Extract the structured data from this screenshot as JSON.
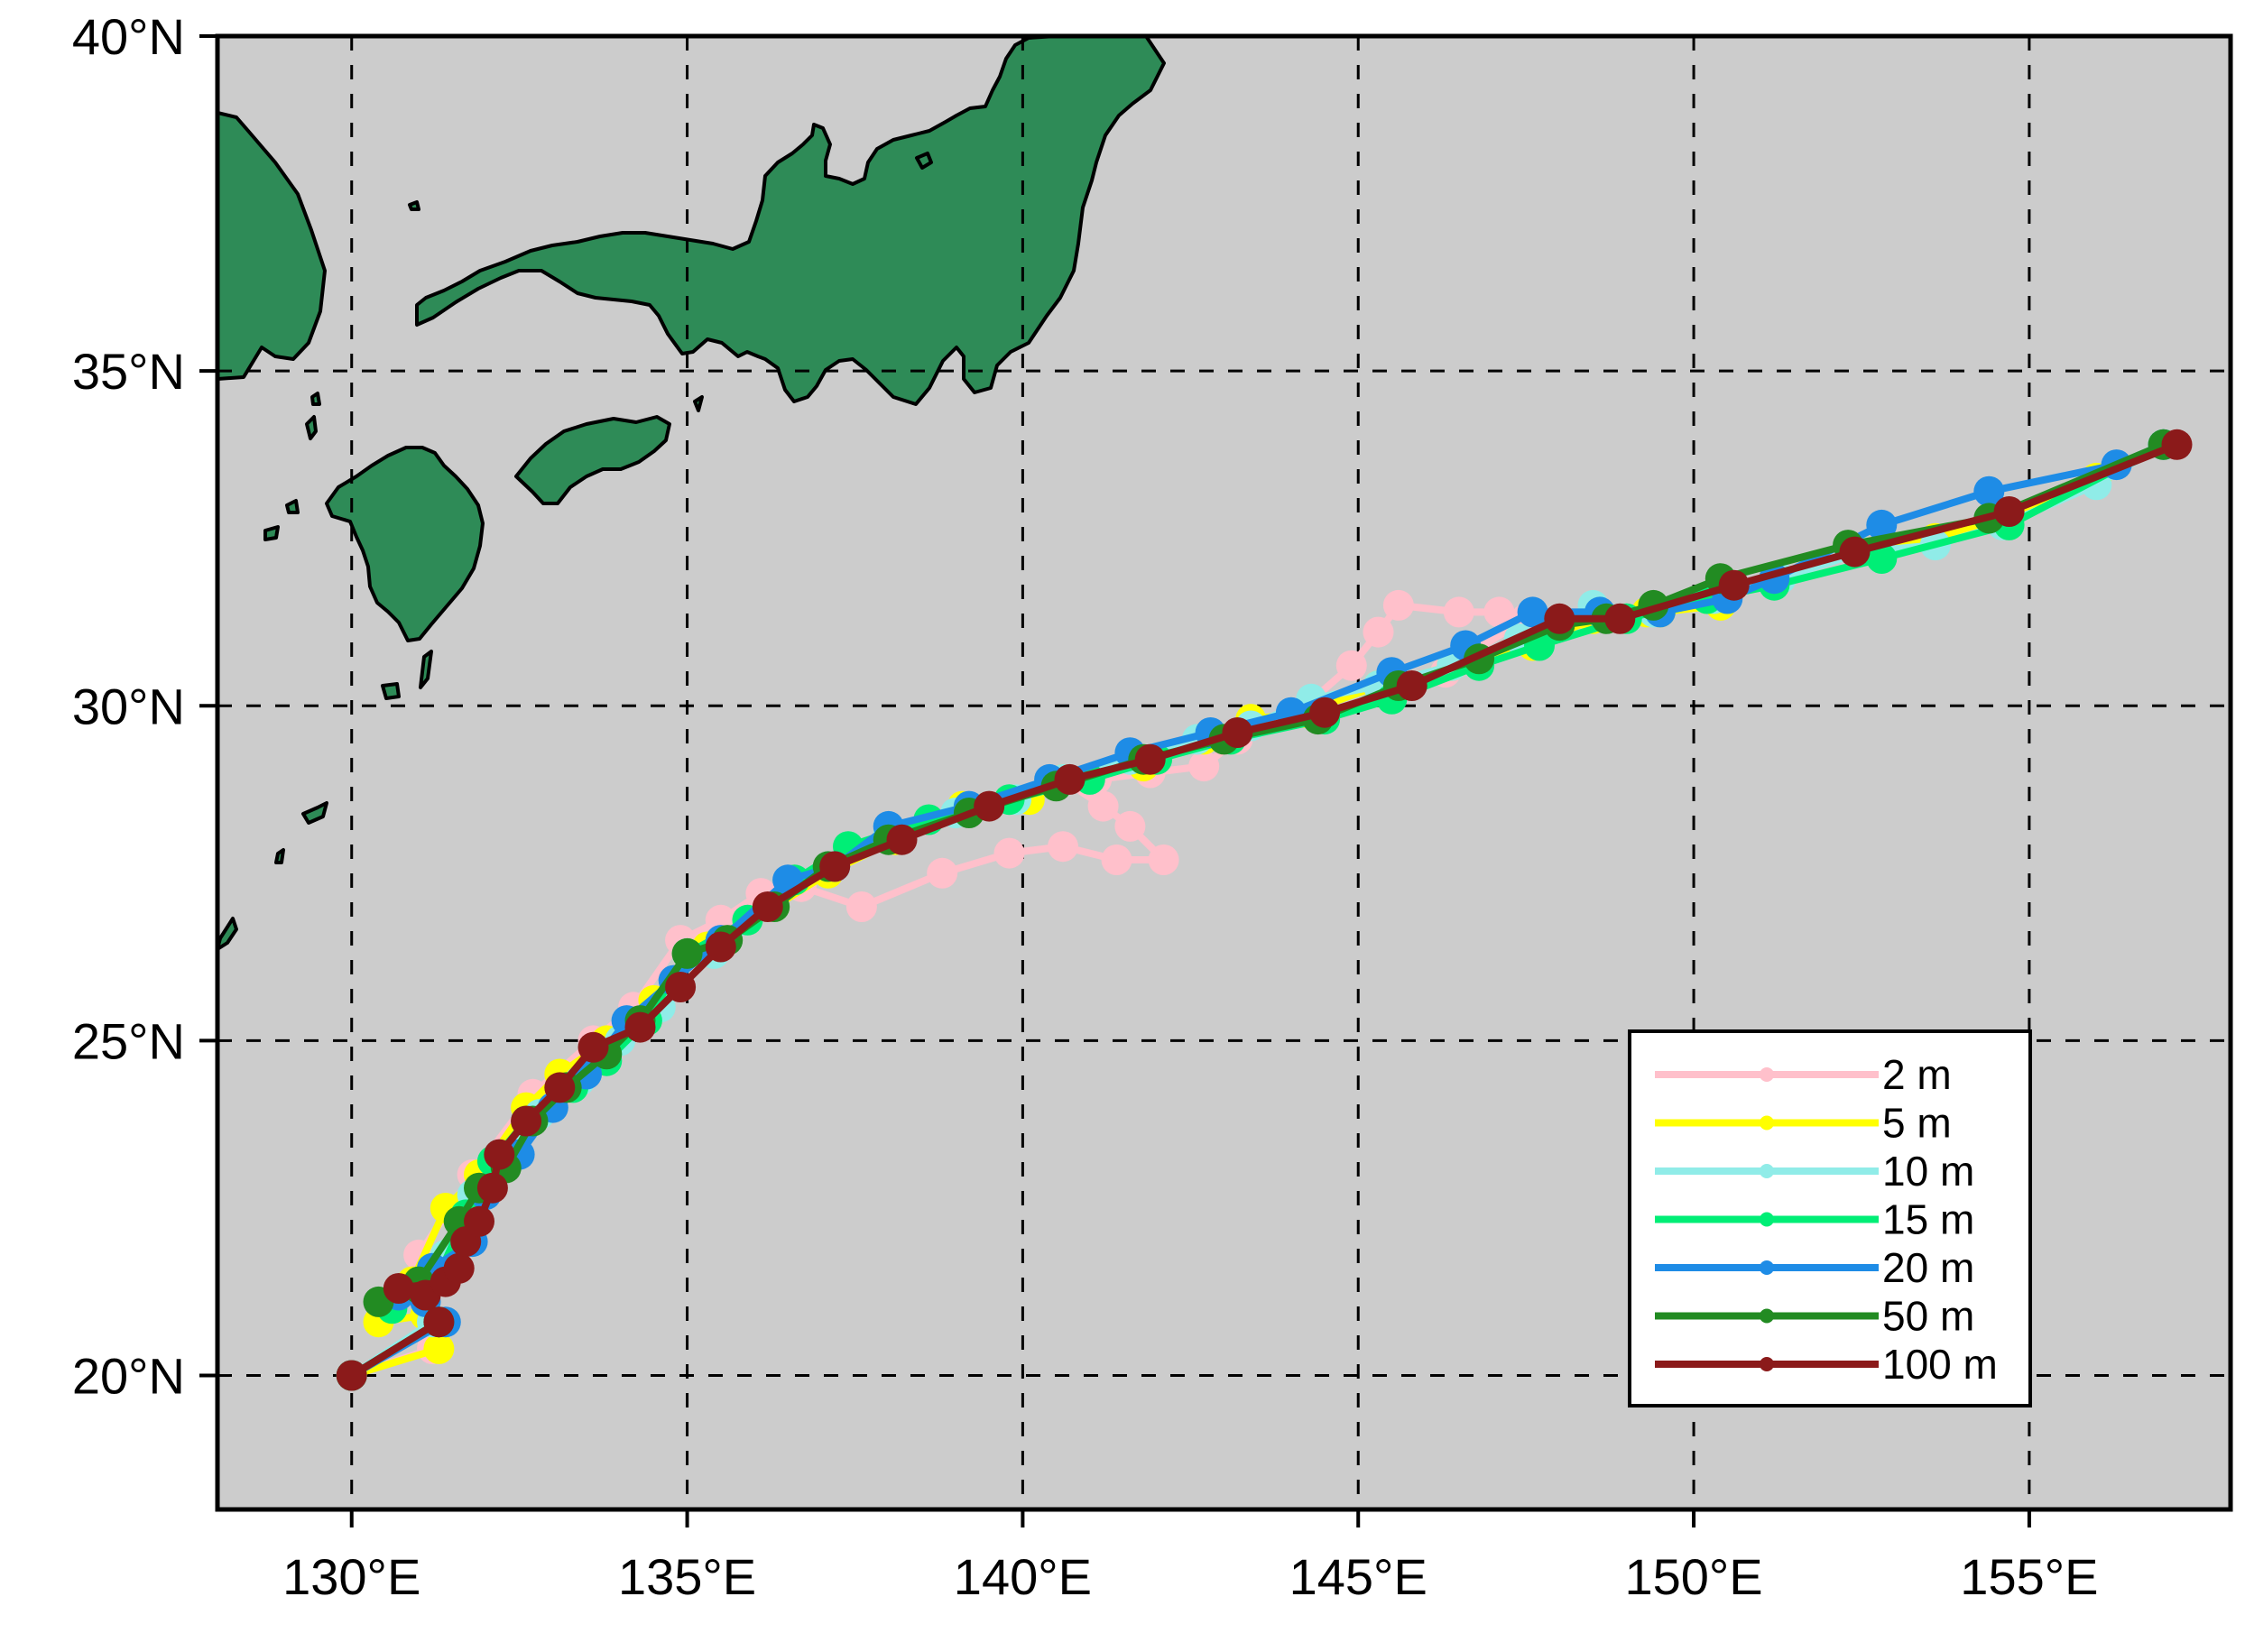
{
  "map": {
    "projection": "cylindrical-equidistant",
    "lon_range": [
      128,
      158
    ],
    "lat_range": [
      18,
      40
    ],
    "ocean_color": "#cccccc",
    "land_color": "#2e8b57",
    "grid": "dashed",
    "x_ticks": [
      {
        "value": 130,
        "label": "130°E"
      },
      {
        "value": 135,
        "label": "135°E"
      },
      {
        "value": 140,
        "label": "140°E"
      },
      {
        "value": 145,
        "label": "145°E"
      },
      {
        "value": 150,
        "label": "150°E"
      },
      {
        "value": 155,
        "label": "155°E"
      }
    ],
    "y_ticks": [
      {
        "value": 20,
        "label": "20°N"
      },
      {
        "value": 25,
        "label": "25°N"
      },
      {
        "value": 30,
        "label": "30°N"
      },
      {
        "value": 35,
        "label": "35°N"
      },
      {
        "value": 40,
        "label": "40°N"
      }
    ]
  },
  "legend": {
    "placement": "bottom-right",
    "entries": [
      "2 m",
      "5 m",
      "10 m",
      "15 m",
      "20 m",
      "50 m",
      "100 m"
    ]
  },
  "chart_data": {
    "type": "line",
    "xlabel": "",
    "ylabel": "",
    "series": [
      {
        "name": "2 m",
        "color": "#ffc0cb",
        "points": [
          [
            130.0,
            20.0
          ],
          [
            131.2,
            20.4
          ],
          [
            131.0,
            21.8
          ],
          [
            131.8,
            23.0
          ],
          [
            132.7,
            24.2
          ],
          [
            133.6,
            25.0
          ],
          [
            134.2,
            25.5
          ],
          [
            134.9,
            26.5
          ],
          [
            135.5,
            26.8
          ],
          [
            136.1,
            27.2
          ],
          [
            136.7,
            27.3
          ],
          [
            137.6,
            27.0
          ],
          [
            138.8,
            27.5
          ],
          [
            139.8,
            27.8
          ],
          [
            140.6,
            27.9
          ],
          [
            141.4,
            27.7
          ],
          [
            142.1,
            27.7
          ],
          [
            141.6,
            28.2
          ],
          [
            141.2,
            28.5
          ],
          [
            140.6,
            28.9
          ],
          [
            141.1,
            28.9
          ],
          [
            141.9,
            29.0
          ],
          [
            142.7,
            29.1
          ],
          [
            143.2,
            29.5
          ],
          [
            144.1,
            29.9
          ],
          [
            144.9,
            30.6
          ],
          [
            145.3,
            31.1
          ],
          [
            145.6,
            31.5
          ],
          [
            146.5,
            31.4
          ],
          [
            147.1,
            31.4
          ],
          [
            147.5,
            31.3
          ],
          [
            146.7,
            30.8
          ],
          [
            146.3,
            30.5
          ],
          [
            145.3,
            30.3
          ]
        ]
      },
      {
        "name": "5 m",
        "color": "#ffff00",
        "points": [
          [
            130.0,
            20.0
          ],
          [
            131.3,
            20.4
          ],
          [
            131.1,
            20.9
          ],
          [
            130.4,
            20.8
          ],
          [
            130.9,
            21.4
          ],
          [
            131.4,
            22.5
          ],
          [
            131.9,
            23.0
          ],
          [
            132.6,
            24.0
          ],
          [
            133.1,
            24.5
          ],
          [
            133.8,
            25.0
          ],
          [
            134.5,
            25.6
          ],
          [
            135.3,
            26.4
          ],
          [
            136.3,
            27.0
          ],
          [
            137.1,
            27.5
          ],
          [
            138.1,
            28.0
          ],
          [
            139.1,
            28.5
          ],
          [
            140.1,
            28.6
          ],
          [
            140.6,
            28.9
          ],
          [
            141.8,
            29.1
          ],
          [
            142.7,
            29.5
          ],
          [
            143.4,
            29.8
          ],
          [
            144.2,
            29.9
          ],
          [
            145.3,
            30.3
          ],
          [
            146.4,
            30.6
          ],
          [
            147.6,
            30.9
          ],
          [
            148.5,
            31.3
          ],
          [
            149.5,
            31.4
          ],
          [
            150.4,
            31.5
          ],
          [
            149.3,
            31.4
          ],
          [
            150.2,
            31.6
          ],
          [
            151.2,
            31.9
          ],
          [
            152.5,
            32.3
          ],
          [
            153.6,
            32.5
          ],
          [
            154.6,
            32.8
          ],
          [
            156.0,
            33.4
          ],
          [
            157.0,
            33.9
          ]
        ]
      },
      {
        "name": "10 m",
        "color": "#90ece8",
        "points": [
          [
            130.0,
            20.0
          ],
          [
            131.2,
            20.8
          ],
          [
            131.1,
            21.3
          ],
          [
            130.7,
            21.2
          ],
          [
            131.4,
            21.8
          ],
          [
            131.8,
            22.7
          ],
          [
            132.2,
            23.3
          ],
          [
            132.8,
            23.9
          ],
          [
            133.4,
            24.4
          ],
          [
            134.0,
            25.0
          ],
          [
            134.6,
            25.5
          ],
          [
            135.4,
            26.3
          ],
          [
            136.3,
            27.0
          ],
          [
            137.1,
            27.6
          ],
          [
            138.0,
            28.1
          ],
          [
            139.0,
            28.4
          ],
          [
            139.9,
            28.6
          ],
          [
            140.6,
            28.9
          ],
          [
            141.6,
            29.2
          ],
          [
            142.6,
            29.5
          ],
          [
            143.4,
            29.7
          ],
          [
            144.3,
            30.1
          ],
          [
            145.3,
            30.3
          ],
          [
            146.4,
            30.6
          ],
          [
            147.4,
            31.0
          ],
          [
            148.5,
            31.5
          ],
          [
            149.4,
            31.4
          ],
          [
            150.3,
            31.6
          ],
          [
            151.3,
            31.9
          ],
          [
            152.5,
            32.3
          ],
          [
            153.6,
            32.4
          ],
          [
            154.6,
            32.7
          ],
          [
            156.0,
            33.3
          ],
          [
            157.0,
            33.9
          ]
        ]
      },
      {
        "name": "15 m",
        "color": "#00ee76",
        "points": [
          [
            130.0,
            20.0
          ],
          [
            131.3,
            20.8
          ],
          [
            131.0,
            21.3
          ],
          [
            130.6,
            21.0
          ],
          [
            131.3,
            21.5
          ],
          [
            131.7,
            22.4
          ],
          [
            132.1,
            23.2
          ],
          [
            132.6,
            23.8
          ],
          [
            133.3,
            24.3
          ],
          [
            133.8,
            24.7
          ],
          [
            134.4,
            25.3
          ],
          [
            135.0,
            26.3
          ],
          [
            135.9,
            26.8
          ],
          [
            136.6,
            27.4
          ],
          [
            137.4,
            27.9
          ],
          [
            138.6,
            28.3
          ],
          [
            139.8,
            28.6
          ],
          [
            141.0,
            28.9
          ],
          [
            142.0,
            29.2
          ],
          [
            143.1,
            29.5
          ],
          [
            144.5,
            29.8
          ],
          [
            145.5,
            30.1
          ],
          [
            146.8,
            30.6
          ],
          [
            147.7,
            30.9
          ],
          [
            149.0,
            31.3
          ],
          [
            150.2,
            31.6
          ],
          [
            151.2,
            31.8
          ],
          [
            152.8,
            32.2
          ],
          [
            154.7,
            32.7
          ],
          [
            157.0,
            33.9
          ]
        ]
      },
      {
        "name": "20 m",
        "color": "#1e8ce6",
        "points": [
          [
            130.0,
            20.0
          ],
          [
            131.4,
            20.8
          ],
          [
            131.1,
            21.1
          ],
          [
            130.7,
            21.2
          ],
          [
            131.2,
            21.6
          ],
          [
            131.8,
            22.0
          ],
          [
            132.0,
            22.7
          ],
          [
            132.5,
            23.3
          ],
          [
            133.0,
            24.0
          ],
          [
            133.5,
            24.5
          ],
          [
            134.1,
            25.3
          ],
          [
            134.8,
            25.9
          ],
          [
            135.5,
            26.5
          ],
          [
            136.5,
            27.4
          ],
          [
            137.2,
            27.6
          ],
          [
            138.0,
            28.2
          ],
          [
            139.2,
            28.5
          ],
          [
            140.4,
            28.9
          ],
          [
            141.6,
            29.3
          ],
          [
            142.8,
            29.6
          ],
          [
            144.0,
            29.9
          ],
          [
            145.5,
            30.5
          ],
          [
            146.6,
            30.9
          ],
          [
            147.6,
            31.4
          ],
          [
            148.6,
            31.4
          ],
          [
            149.5,
            31.4
          ],
          [
            150.5,
            31.6
          ],
          [
            151.2,
            31.9
          ],
          [
            152.8,
            32.7
          ],
          [
            154.4,
            33.2
          ],
          [
            156.3,
            33.6
          ],
          [
            157.0,
            33.9
          ]
        ]
      },
      {
        "name": "50 m",
        "color": "#228b22",
        "points": [
          [
            130.0,
            20.0
          ],
          [
            131.3,
            20.8
          ],
          [
            131.0,
            21.3
          ],
          [
            130.4,
            21.1
          ],
          [
            131.0,
            21.4
          ],
          [
            131.6,
            22.3
          ],
          [
            131.9,
            22.8
          ],
          [
            132.3,
            23.1
          ],
          [
            132.7,
            23.8
          ],
          [
            133.2,
            24.3
          ],
          [
            133.8,
            24.8
          ],
          [
            134.3,
            25.3
          ],
          [
            135.0,
            26.3
          ],
          [
            135.6,
            26.5
          ],
          [
            136.3,
            27.0
          ],
          [
            137.1,
            27.6
          ],
          [
            138.0,
            28.0
          ],
          [
            139.2,
            28.4
          ],
          [
            140.5,
            28.8
          ],
          [
            141.8,
            29.2
          ],
          [
            143.0,
            29.5
          ],
          [
            144.4,
            29.8
          ],
          [
            145.6,
            30.3
          ],
          [
            146.8,
            30.7
          ],
          [
            148.0,
            31.2
          ],
          [
            148.7,
            31.3
          ],
          [
            149.4,
            31.5
          ],
          [
            150.4,
            31.9
          ],
          [
            152.3,
            32.4
          ],
          [
            154.4,
            32.8
          ],
          [
            157.0,
            33.9
          ]
        ]
      },
      {
        "name": "100 m",
        "color": "#8b1a1a",
        "points": [
          [
            130.0,
            20.0
          ],
          [
            131.3,
            20.8
          ],
          [
            131.1,
            21.2
          ],
          [
            130.7,
            21.3
          ],
          [
            131.4,
            21.4
          ],
          [
            131.6,
            21.6
          ],
          [
            131.7,
            22.0
          ],
          [
            131.9,
            22.3
          ],
          [
            132.1,
            22.8
          ],
          [
            132.2,
            23.3
          ],
          [
            132.6,
            23.8
          ],
          [
            133.1,
            24.3
          ],
          [
            133.6,
            24.9
          ],
          [
            134.3,
            25.2
          ],
          [
            134.9,
            25.8
          ],
          [
            135.5,
            26.4
          ],
          [
            136.2,
            27.0
          ],
          [
            137.2,
            27.6
          ],
          [
            138.2,
            28.0
          ],
          [
            139.5,
            28.5
          ],
          [
            140.7,
            28.9
          ],
          [
            141.9,
            29.2
          ],
          [
            143.2,
            29.6
          ],
          [
            144.5,
            29.9
          ],
          [
            145.8,
            30.3
          ],
          [
            148.0,
            31.3
          ],
          [
            148.9,
            31.3
          ],
          [
            150.6,
            31.8
          ],
          [
            152.4,
            32.3
          ],
          [
            154.7,
            32.9
          ],
          [
            157.2,
            33.9
          ]
        ]
      }
    ]
  }
}
